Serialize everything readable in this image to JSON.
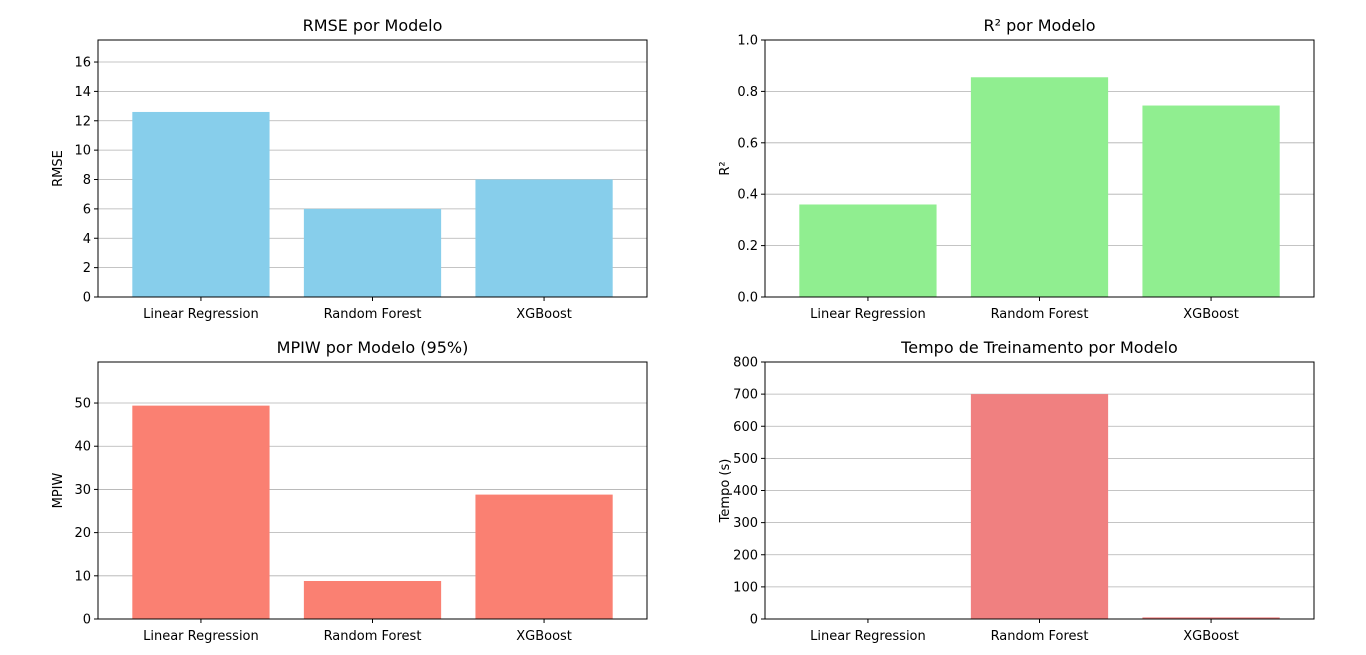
{
  "chart_data": [
    {
      "type": "bar",
      "title": "RMSE por Modelo",
      "xlabel": "",
      "ylabel": "RMSE",
      "categories": [
        "Linear Regression",
        "Random Forest",
        "XGBoost"
      ],
      "values": [
        12.6,
        6.0,
        8.0
      ],
      "ylim": [
        0,
        17.5
      ],
      "yticks": [
        0,
        2,
        4,
        6,
        8,
        10,
        12,
        14,
        16
      ],
      "ytick_labels": [
        "0",
        "2",
        "4",
        "6",
        "8",
        "10",
        "12",
        "14",
        "16"
      ],
      "color": "#87ceeb",
      "grid": "y"
    },
    {
      "type": "bar",
      "title": "R² por Modelo",
      "xlabel": "",
      "ylabel": "R²",
      "categories": [
        "Linear Regression",
        "Random Forest",
        "XGBoost"
      ],
      "values": [
        0.36,
        0.855,
        0.745
      ],
      "ylim": [
        0,
        1.0
      ],
      "yticks": [
        0,
        0.2,
        0.4,
        0.6,
        0.8,
        1.0
      ],
      "ytick_labels": [
        "0.0",
        "0.2",
        "0.4",
        "0.6",
        "0.8",
        "1.0"
      ],
      "color": "#90ee90",
      "grid": "y"
    },
    {
      "type": "bar",
      "title": "MPIW por Modelo (95%)",
      "xlabel": "",
      "ylabel": "MPIW",
      "categories": [
        "Linear Regression",
        "Random Forest",
        "XGBoost"
      ],
      "values": [
        49.4,
        8.8,
        28.8
      ],
      "ylim": [
        0,
        59.5
      ],
      "yticks": [
        0,
        10,
        20,
        30,
        40,
        50
      ],
      "ytick_labels": [
        "0",
        "10",
        "20",
        "30",
        "40",
        "50"
      ],
      "color": "#fa8072",
      "grid": "y"
    },
    {
      "type": "bar",
      "title": "Tempo de Treinamento por Modelo",
      "xlabel": "",
      "ylabel": "Tempo (s)",
      "categories": [
        "Linear Regression",
        "Random Forest",
        "XGBoost"
      ],
      "values": [
        1.5,
        700,
        5
      ],
      "ylim": [
        0,
        800
      ],
      "yticks": [
        0,
        100,
        200,
        300,
        400,
        500,
        600,
        700,
        800
      ],
      "ytick_labels": [
        "0",
        "100",
        "200",
        "300",
        "400",
        "500",
        "600",
        "700",
        "800"
      ],
      "color": "#f08080",
      "grid": "y"
    }
  ]
}
